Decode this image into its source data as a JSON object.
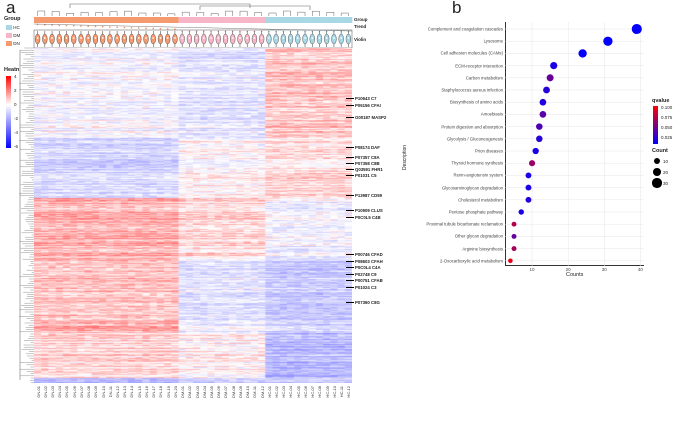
{
  "panel_a": {
    "letter": "a",
    "group_legend": {
      "title": "Group",
      "items": [
        {
          "label": "HC",
          "color": "#a8d8e6"
        },
        {
          "label": "DM",
          "color": "#f7b6c8"
        },
        {
          "label": "DN",
          "color": "#f59a6e"
        }
      ]
    },
    "heatmap_legend": {
      "title": "Heatmap",
      "ticks": [
        "4",
        "2",
        "0",
        "-2",
        "-4",
        "-6"
      ]
    },
    "track_labels": {
      "group": "Group",
      "trend": "Trend",
      "violin": "Violin"
    },
    "groups": [
      {
        "name": "DN",
        "n": 20,
        "color": "#f59a6e"
      },
      {
        "name": "DM",
        "n": 12,
        "color": "#f7b6c8"
      },
      {
        "name": "HC",
        "n": 12,
        "color": "#a8d8e6"
      }
    ],
    "protein_labels": [
      "P10643  C7",
      "P05156  CFAI",
      "O00187  MASP2",
      "P08174  DAF",
      "P07357  C8A",
      "P07358  C8B",
      "Q03591  FHR1",
      "P01031  C5",
      "P13987  CD59",
      "P10909  CLUS",
      "P0C0L5  C4B",
      "P00746  CFAD",
      "P08603  CFAH",
      "P0C0L4  C4A",
      "P02748  C9",
      "P00751  CFAB",
      "P01024  C3",
      "P07360  C8G"
    ]
  },
  "chart_data": {
    "type": "scatter",
    "panel_letter": "b",
    "title": "",
    "xlabel": "Counts",
    "ylabel": "Description",
    "xlim": [
      2.5,
      41
    ],
    "xticks": [
      "10",
      "20",
      "30",
      "40"
    ],
    "grid": true,
    "categories": [
      "Complement and coagulation cascades",
      "Lysosome",
      "Cell adhesion molecules (CAMs)",
      "ECM-receptor interaction",
      "Carbon metabolism",
      "Staphylococcus aureus infection",
      "Biosynthesis of amino acids",
      "Amoebiasis",
      "Protein digestion and absorption",
      "Glycolysis / Gluconeogenesis",
      "Prion diseases",
      "Thyroid hormone synthesis",
      "Renin-angiotensin system",
      "Glycosaminoglycan degradation",
      "Cholesterol metabolism",
      "Pentose phosphate pathway",
      "Proximal tubule bicarbonate reclamation",
      "Other glycan degradation",
      "Arginine biosynthesis",
      "2-Oxocarboxylic acid metabolism"
    ],
    "counts": [
      39,
      31,
      24,
      16,
      15,
      14,
      13,
      13,
      12,
      12,
      11,
      10,
      9,
      9,
      9,
      7,
      5,
      5,
      5,
      4
    ],
    "qvalues": [
      0.001,
      0.001,
      0.002,
      0.01,
      0.04,
      0.015,
      0.012,
      0.035,
      0.03,
      0.015,
      0.01,
      0.06,
      0.01,
      0.01,
      0.015,
      0.01,
      0.07,
      0.04,
      0.065,
      0.09
    ],
    "color_legend": {
      "title": "qvalue",
      "ticks": [
        "0.100",
        "0.075",
        "0.050",
        "0.025"
      ],
      "low": "#0000ff",
      "high": "#ff0000"
    },
    "size_legend": {
      "title": "Count",
      "ticks": [
        "10",
        "20",
        "30"
      ]
    }
  }
}
